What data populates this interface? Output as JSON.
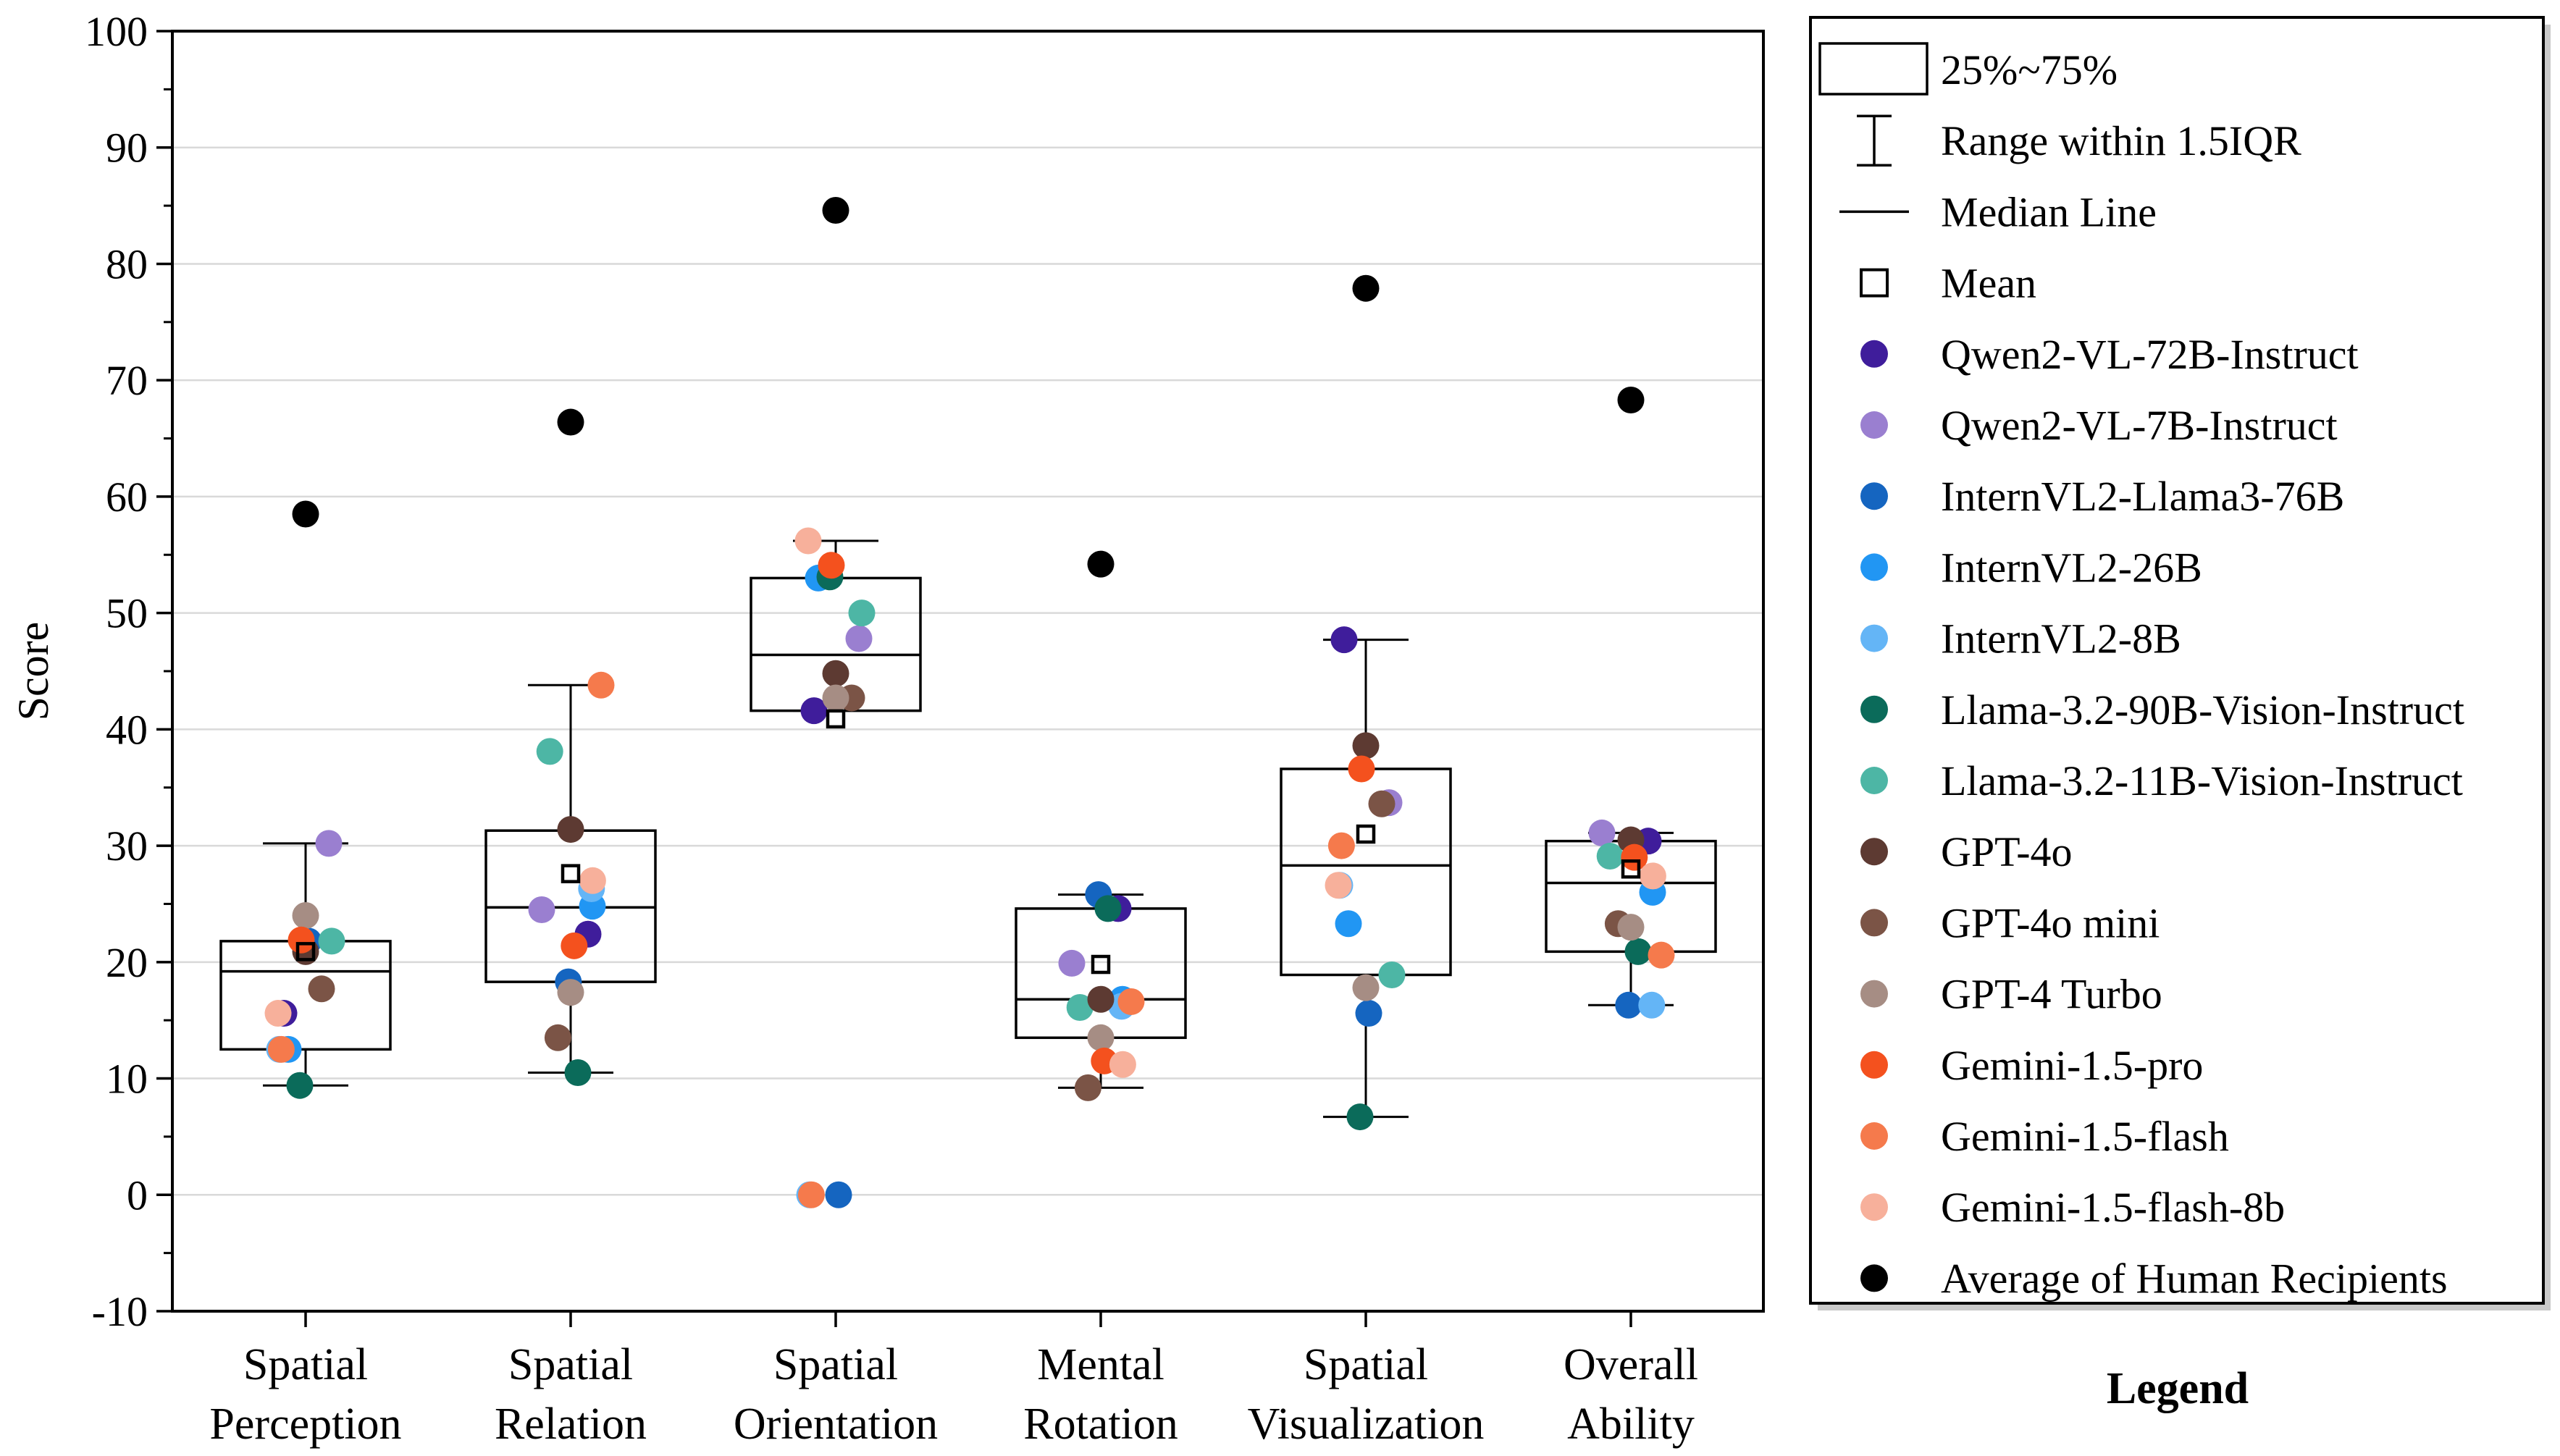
{
  "chart_data": {
    "type": "box",
    "title": "",
    "xlabel": "",
    "ylabel": "Score",
    "ylim": [
      -10,
      100
    ],
    "yticks": [
      -10,
      0,
      10,
      20,
      30,
      40,
      50,
      60,
      70,
      80,
      90,
      100
    ],
    "grid": true,
    "legend_title": "Legend",
    "legend_position": "right",
    "categories": [
      [
        "Spatial",
        "Perception"
      ],
      [
        "Spatial",
        "Relation"
      ],
      [
        "Spatial",
        "Orientation"
      ],
      [
        "Mental",
        "Rotation"
      ],
      [
        "Spatial",
        "Visualization"
      ],
      [
        "Overall",
        "Ability"
      ]
    ],
    "box_legend": [
      {
        "kind": "box",
        "label": "25%~75%"
      },
      {
        "kind": "whisker",
        "label": "Range within 1.5IQR"
      },
      {
        "kind": "median",
        "label": "Median Line"
      },
      {
        "kind": "mean",
        "label": "Mean"
      }
    ],
    "boxes": [
      {
        "q1": 12.5,
        "q3": 21.8,
        "median": 19.2,
        "mean": 20.9,
        "whisker_low": 9.4,
        "whisker_high": 30.2
      },
      {
        "q1": 18.3,
        "q3": 31.3,
        "median": 24.7,
        "mean": 27.6,
        "whisker_low": 10.5,
        "whisker_high": 43.8
      },
      {
        "q1": 41.6,
        "q3": 53.0,
        "median": 46.4,
        "mean": 40.9,
        "whisker_low": 41.6,
        "whisker_high": 56.2
      },
      {
        "q1": 13.5,
        "q3": 24.6,
        "median": 16.8,
        "mean": 19.8,
        "whisker_low": 9.2,
        "whisker_high": 25.8
      },
      {
        "q1": 18.9,
        "q3": 36.6,
        "median": 28.3,
        "mean": 31.0,
        "whisker_low": 6.7,
        "whisker_high": 47.7
      },
      {
        "q1": 20.9,
        "q3": 30.4,
        "median": 26.8,
        "mean": 28.0,
        "whisker_low": 16.3,
        "whisker_high": 31.1
      }
    ],
    "series": [
      {
        "name": "Qwen2-VL-72B-Instruct",
        "color": "#3f1d9b",
        "values": [
          15.6,
          22.4,
          41.6,
          24.6,
          47.7,
          30.4
        ]
      },
      {
        "name": "Qwen2-VL-7B-Instruct",
        "color": "#9a7fd0",
        "values": [
          30.2,
          24.5,
          47.8,
          19.9,
          33.7,
          31.1
        ]
      },
      {
        "name": "InternVL2-Llama3-76B",
        "color": "#1565c0",
        "values": [
          21.8,
          18.3,
          0.0,
          25.8,
          15.6,
          16.3
        ]
      },
      {
        "name": "InternVL2-26B",
        "color": "#2196f3",
        "values": [
          12.5,
          24.8,
          53.0,
          16.8,
          23.3,
          26.0
        ]
      },
      {
        "name": "InternVL2-8B",
        "color": "#64b5f6",
        "values": [
          12.5,
          26.3,
          0.0,
          16.2,
          26.6,
          16.3
        ]
      },
      {
        "name": "Llama-3.2-90B-Vision-Instruct",
        "color": "#0b6b5a",
        "values": [
          9.4,
          10.5,
          53.1,
          24.6,
          6.7,
          20.9
        ]
      },
      {
        "name": "Llama-3.2-11B-Vision-Instruct",
        "color": "#4db6a5",
        "values": [
          21.8,
          38.1,
          50.0,
          16.1,
          18.9,
          29.1
        ]
      },
      {
        "name": "GPT-4o",
        "color": "#5d3a32",
        "values": [
          20.9,
          31.4,
          44.8,
          16.8,
          38.6,
          30.5
        ]
      },
      {
        "name": "GPT-4o mini",
        "color": "#7b5446",
        "values": [
          17.7,
          13.5,
          42.7,
          9.2,
          33.6,
          23.3
        ]
      },
      {
        "name": "GPT-4 Turbo",
        "color": "#a68d84",
        "values": [
          24.0,
          17.4,
          42.7,
          13.5,
          17.8,
          23.0
        ]
      },
      {
        "name": "Gemini-1.5-pro",
        "color": "#f4511e",
        "values": [
          21.9,
          21.4,
          54.1,
          11.5,
          36.6,
          29.0
        ]
      },
      {
        "name": "Gemini-1.5-flash",
        "color": "#f57a4c",
        "values": [
          12.5,
          43.8,
          0.0,
          16.6,
          30.0,
          20.6
        ]
      },
      {
        "name": "Gemini-1.5-flash-8b",
        "color": "#f7b09b",
        "values": [
          15.6,
          27.0,
          56.2,
          11.2,
          26.6,
          27.4
        ]
      },
      {
        "name": "Average of Human Recipients",
        "color": "#000000",
        "values": [
          58.5,
          66.4,
          84.6,
          54.2,
          77.9,
          68.3
        ]
      }
    ]
  }
}
